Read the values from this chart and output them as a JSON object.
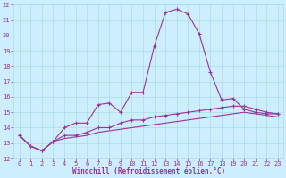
{
  "xlabel": "Windchill (Refroidissement éolien,°C)",
  "bg_color": "#cceeff",
  "grid_color": "#aadddd",
  "line_color": "#993399",
  "x": [
    0,
    1,
    2,
    3,
    4,
    5,
    6,
    7,
    8,
    9,
    10,
    11,
    12,
    13,
    14,
    15,
    16,
    17,
    18,
    19,
    20,
    21,
    22,
    23
  ],
  "line1": [
    13.5,
    12.8,
    12.5,
    13.1,
    14.0,
    14.3,
    14.3,
    15.5,
    15.6,
    15.0,
    16.3,
    16.3,
    19.3,
    21.5,
    21.7,
    21.4,
    20.1,
    17.6,
    15.8,
    15.9,
    15.2,
    15.0,
    14.9,
    14.9
  ],
  "line2": [
    13.5,
    12.8,
    12.5,
    13.1,
    13.5,
    13.5,
    13.7,
    14.0,
    14.0,
    14.3,
    14.5,
    14.5,
    14.7,
    14.8,
    14.9,
    15.0,
    15.1,
    15.2,
    15.3,
    15.4,
    15.4,
    15.2,
    15.0,
    14.9
  ],
  "line3": [
    13.5,
    12.8,
    12.5,
    13.1,
    13.3,
    13.4,
    13.5,
    13.7,
    13.8,
    13.9,
    14.0,
    14.1,
    14.2,
    14.3,
    14.4,
    14.5,
    14.6,
    14.7,
    14.8,
    14.9,
    15.0,
    14.9,
    14.8,
    14.7
  ],
  "ylim": [
    12,
    22
  ],
  "xlim": [
    -0.5,
    23.5
  ],
  "yticks": [
    12,
    13,
    14,
    15,
    16,
    17,
    18,
    19,
    20,
    21,
    22
  ],
  "xticks": [
    0,
    1,
    2,
    3,
    4,
    5,
    6,
    7,
    8,
    9,
    10,
    11,
    12,
    13,
    14,
    15,
    16,
    17,
    18,
    19,
    20,
    21,
    22,
    23
  ],
  "xlabel_fontsize": 5.5,
  "tick_fontsize": 5.0,
  "linewidth": 0.8,
  "marker_size": 3
}
